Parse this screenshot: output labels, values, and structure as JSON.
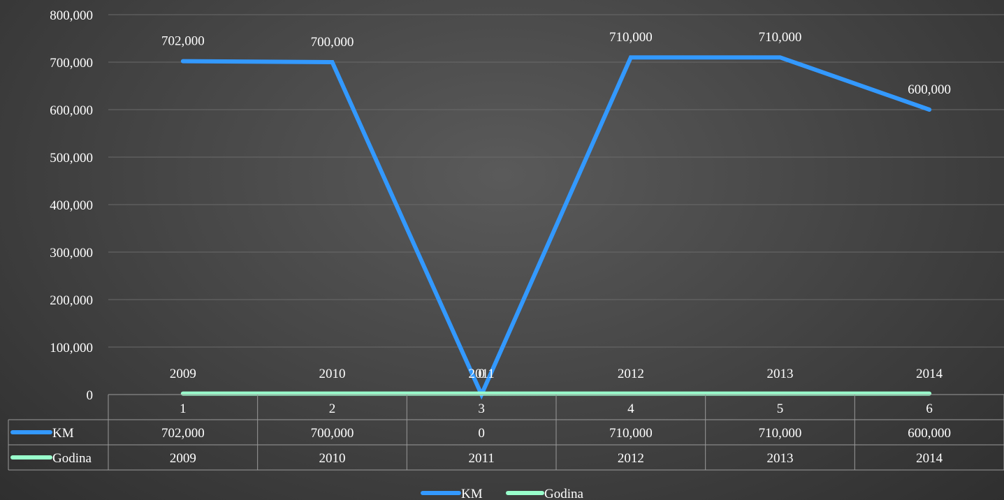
{
  "chart_data": {
    "type": "line",
    "categories": [
      "1",
      "2",
      "3",
      "4",
      "5",
      "6"
    ],
    "yticks": [
      "0",
      "100,000",
      "200,000",
      "300,000",
      "400,000",
      "500,000",
      "600,000",
      "700,000",
      "800,000"
    ],
    "ylim": [
      0,
      800000
    ],
    "grid": true,
    "legend_position": "bottom",
    "data_table": true,
    "series": [
      {
        "name": "KM",
        "color": "#3399ff",
        "values": [
          702000,
          700000,
          0,
          710000,
          710000,
          600000
        ],
        "labels": [
          "702,000",
          "700,000",
          "0",
          "710,000",
          "710,000",
          "600,000"
        ]
      },
      {
        "name": "Godina",
        "color": "#99ffcc",
        "values": [
          2009,
          2010,
          2011,
          2012,
          2013,
          2014
        ],
        "labels": [
          "2009",
          "2010",
          "2011",
          "2012",
          "2013",
          "2014"
        ]
      }
    ]
  }
}
